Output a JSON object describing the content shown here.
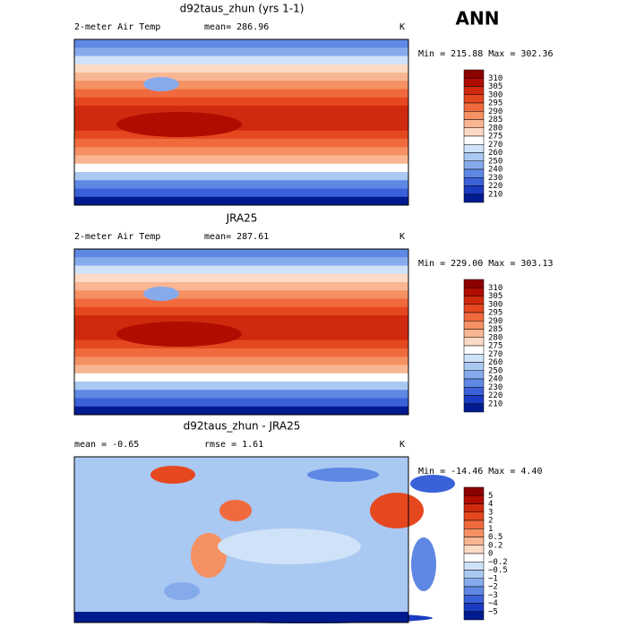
{
  "figure_title": "ANN",
  "panels": [
    {
      "title": "d92taus_zhun (yrs 1-1)",
      "left_label": "2-meter Air Temp",
      "center_label": "mean= 286.96",
      "units": "K",
      "min_max": "Min = 215.88 Max = 302.36",
      "colorbar": {
        "colors": [
          "#8c0000",
          "#b00c00",
          "#d02a0e",
          "#e5481f",
          "#f06a3e",
          "#f59163",
          "#f9b693",
          "#fcdac6",
          "#ffffff",
          "#cfe2f7",
          "#a9c8f2",
          "#86abec",
          "#5f88e4",
          "#3b61d8",
          "#1a3cc2",
          "#001a8f"
        ],
        "labels": [
          "310",
          "305",
          "300",
          "295",
          "290",
          "285",
          "280",
          "275",
          "270",
          "260",
          "250",
          "240",
          "230",
          "220",
          "210"
        ]
      }
    },
    {
      "title": "JRA25",
      "left_label": "2-meter Air Temp",
      "center_label": "mean= 287.61",
      "units": "K",
      "min_max": "Min = 229.00 Max = 303.13",
      "colorbar": {
        "colors": [
          "#8c0000",
          "#b00c00",
          "#d02a0e",
          "#e5481f",
          "#f06a3e",
          "#f59163",
          "#f9b693",
          "#fcdac6",
          "#ffffff",
          "#cfe2f7",
          "#a9c8f2",
          "#86abec",
          "#5f88e4",
          "#3b61d8",
          "#1a3cc2",
          "#001a8f"
        ],
        "labels": [
          "310",
          "305",
          "300",
          "295",
          "290",
          "285",
          "280",
          "275",
          "270",
          "260",
          "250",
          "240",
          "230",
          "220",
          "210"
        ]
      }
    },
    {
      "title": "d92taus_zhun - JRA25",
      "left_label": "mean =  -0.65",
      "center_label": "rmse =   1.61",
      "units": "K",
      "min_max": "Min = -14.46 Max =   4.40",
      "colorbar": {
        "colors": [
          "#8c0000",
          "#b00c00",
          "#d02a0e",
          "#e5481f",
          "#f06a3e",
          "#f59163",
          "#f9b693",
          "#fcdac6",
          "#ffffff",
          "#cfe2f7",
          "#a9c8f2",
          "#86abec",
          "#5f88e4",
          "#3b61d8",
          "#1a3cc2",
          "#001a8f"
        ],
        "labels": [
          "5",
          "4",
          "3",
          "2",
          "1",
          "0.5",
          "0.2",
          "0",
          "−0.2",
          "−0.5",
          "−1",
          "−2",
          "−3",
          "−4",
          "−5"
        ]
      }
    }
  ]
}
